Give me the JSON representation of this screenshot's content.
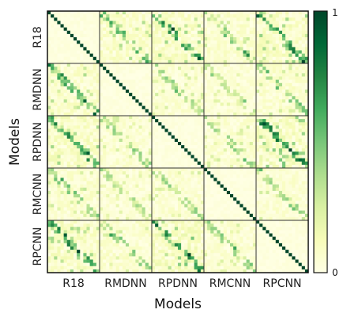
{
  "chart_data": {
    "type": "heatmap",
    "title": "",
    "xlabel": "Models",
    "ylabel": "Models",
    "categories": [
      "R18",
      "RMDNN",
      "RPDNN",
      "RMCNN",
      "RPCNN"
    ],
    "x_tick_labels": [
      "R18",
      "RMDNN",
      "RPDNN",
      "RMCNN",
      "RPCNN"
    ],
    "y_tick_labels": [
      "R18",
      "RMDNN",
      "RPDNN",
      "RMCNN",
      "RPCNN"
    ],
    "cells_per_block": 16,
    "diagonal_value": 1.0,
    "block_summary": [
      [
        1.0,
        0.3,
        0.35,
        0.25,
        0.35
      ],
      [
        0.3,
        1.0,
        0.22,
        0.18,
        0.25
      ],
      [
        0.35,
        0.22,
        1.0,
        0.22,
        0.4
      ],
      [
        0.25,
        0.18,
        0.22,
        1.0,
        0.22
      ],
      [
        0.35,
        0.25,
        0.4,
        0.22,
        1.0
      ]
    ],
    "colorbar": {
      "min": 0,
      "max": 1,
      "tick_labels": [
        "1",
        "0"
      ],
      "colormap": "YlGn"
    },
    "colors": {
      "low": "#ffffe5",
      "mid": "#addd8e",
      "high": "#005a32"
    }
  }
}
